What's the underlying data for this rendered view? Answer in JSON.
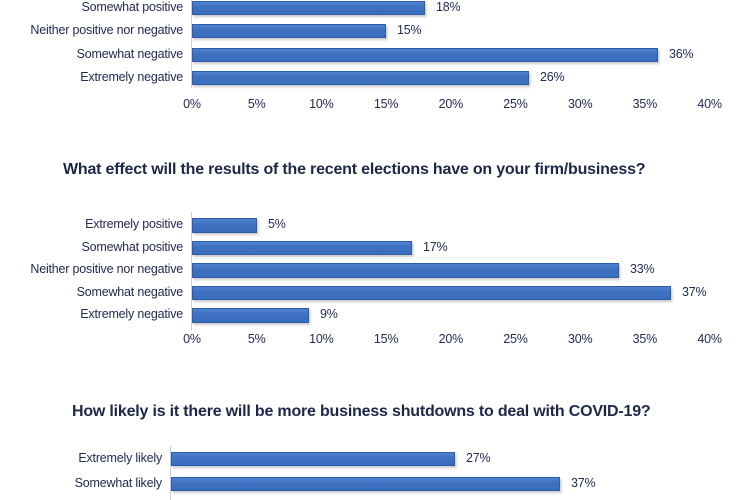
{
  "page": {
    "background": "#ffffff"
  },
  "colors": {
    "bar_fill": "#3e71c2",
    "bar_border": "#2b5ca9",
    "label_text": "#232a54",
    "title_text": "#1c2749",
    "axis_line": "#c8d0dc"
  },
  "chart_data": [
    {
      "type": "bar",
      "orientation": "horizontal",
      "title": "",
      "categories": [
        "Somewhat positive",
        "Neither positive nor negative",
        "Somewhat negative",
        "Extremely negative"
      ],
      "values": [
        18,
        15,
        36,
        26
      ],
      "value_labels": [
        "18%",
        "15%",
        "36%",
        "26%"
      ],
      "x_ticks": [
        "0%",
        "5%",
        "10%",
        "15%",
        "20%",
        "25%",
        "30%",
        "35%",
        "40%"
      ],
      "xlim": [
        0,
        40
      ],
      "grid": false,
      "legend": false
    },
    {
      "type": "bar",
      "orientation": "horizontal",
      "title": "What effect will the results of the recent elections have on your firm/business?",
      "categories": [
        "Extremely positive",
        "Somewhat positive",
        "Neither positive nor negative",
        "Somewhat negative",
        "Extremely negative"
      ],
      "values": [
        5,
        17,
        33,
        37,
        9
      ],
      "value_labels": [
        "5%",
        "17%",
        "33%",
        "37%",
        "9%"
      ],
      "x_ticks": [
        "0%",
        "5%",
        "10%",
        "15%",
        "20%",
        "25%",
        "30%",
        "35%",
        "40%"
      ],
      "xlim": [
        0,
        40
      ],
      "grid": false,
      "legend": false
    },
    {
      "type": "bar",
      "orientation": "horizontal",
      "title": "How likely is it there will be more business shutdowns to deal with COVID-19?",
      "categories": [
        "Extremely likely",
        "Somewhat likely"
      ],
      "values": [
        27,
        37
      ],
      "value_labels": [
        "27%",
        "37%"
      ],
      "x_ticks": [],
      "grid": false,
      "legend": false
    }
  ]
}
